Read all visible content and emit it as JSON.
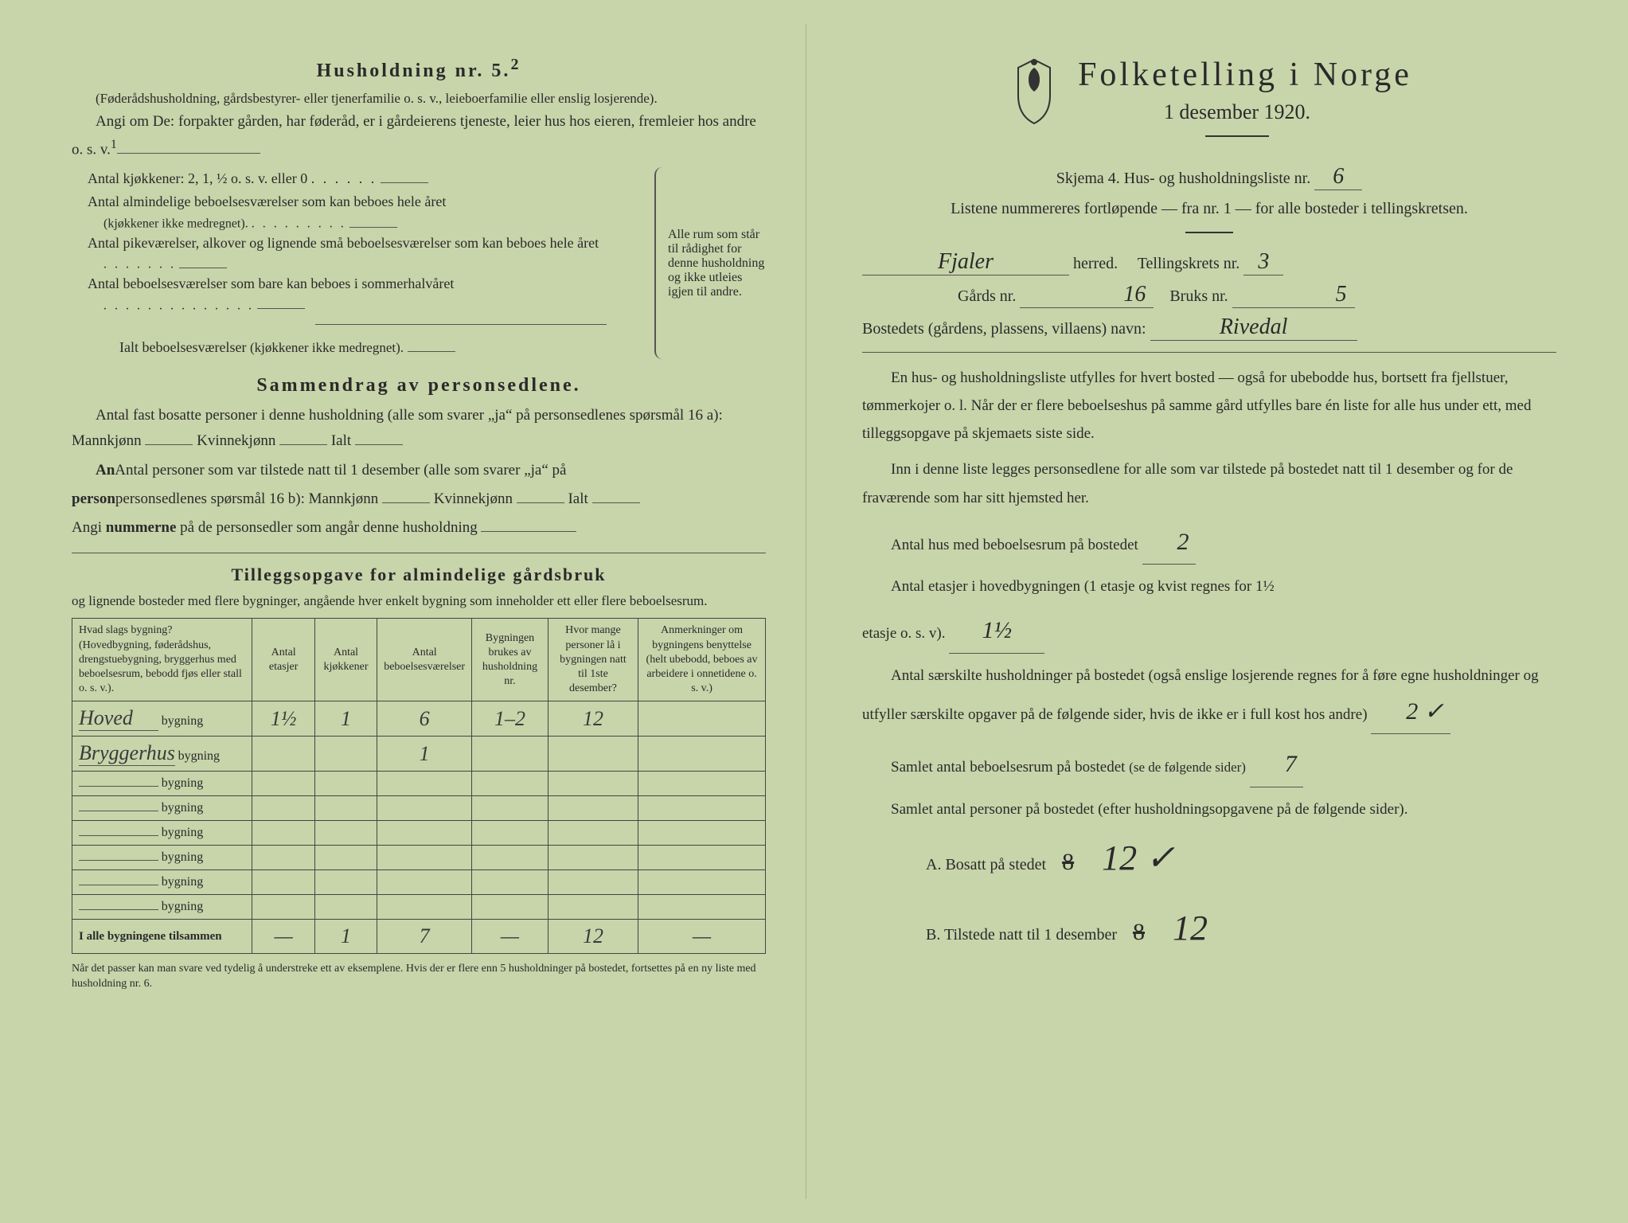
{
  "left": {
    "household_heading": "Husholdning nr. 5.",
    "household_sup": "2",
    "household_note": "(Føderådshusholdning, gårdsbestyrer- eller tjenerfamilie o. s. v., leieboerfamilie eller enslig losjerende).",
    "angi_intro": "Angi om De:   forpakter gården, har føderåd, er i gårdeierens tjeneste, leier hus hos eieren, fremleier hos andre o. s. v.",
    "sup1": "1",
    "kitchens_line": "Antal kjøkkener: 2, 1, ½ o. s. v. eller 0",
    "rooms_all_year": "Antal almindelige beboelsesværelser som kan beboes hele året",
    "rooms_all_year_sub": "(kjøkkener ikke medregnet).",
    "rooms_maid": "Antal pikeværelser, alkover og lignende små beboelsesværelser som kan beboes hele året",
    "rooms_summer": "Antal beboelsesværelser som bare kan beboes i sommerhalvåret",
    "rooms_total": "Ialt beboelsesværelser",
    "rooms_total_sub": "(kjøkkener ikke medregnet).",
    "brace_text": "Alle rum som står til rådighet for denne husholdning og ikke utleies igjen til andre.",
    "summary_heading": "Sammendrag av personsedlene.",
    "summary_p1": "Antal fast bosatte personer i denne husholdning (alle som svarer „ja“ på personsedlenes spørsmål 16 a): Mannkjønn",
    "kvinne": "Kvinnekjønn",
    "ialt": "Ialt",
    "summary_p2a": "Antal personer som var tilstede natt til 1 desember (alle som svarer „ja“ på",
    "summary_p2b": "personsedlenes spørsmål 16 b): Mannkjønn",
    "summary_p3": "Angi nummerne på de personsedler som angår denne husholdning",
    "tillegg_heading": "Tilleggsopgave for almindelige gårdsbruk",
    "tillegg_note": "og lignende bosteder med flere bygninger, angående hver enkelt bygning som inneholder ett eller flere beboelsesrum.",
    "table": {
      "headers": [
        "Hvad slags bygning?\n(Hovedbygning, føderådshus, drengstuebygning, bryggerhus med beboelsesrum, bebodd fjøs eller stall o. s. v.).",
        "Antal etasjer",
        "Antal kjøkkener",
        "Antal beboelsesværelser",
        "Bygningen brukes av husholdning nr.",
        "Hvor mange personer lå i bygningen natt til 1ste desember?",
        "Anmerkninger om bygningens benyttelse (helt ubebodd, beboes av arbeidere i onnetidene o. s. v.)"
      ],
      "row_suffix": "bygning",
      "rows": [
        {
          "label": "Hoved",
          "etasjer": "1½",
          "kjokken": "1",
          "rum": "6",
          "hush": "1–2",
          "pers": "12",
          "anm": ""
        },
        {
          "label": "Bryggerhus",
          "etasjer": "",
          "kjokken": "",
          "rum": "1",
          "hush": "",
          "pers": "",
          "anm": ""
        },
        {
          "label": "",
          "etasjer": "",
          "kjokken": "",
          "rum": "",
          "hush": "",
          "pers": "",
          "anm": ""
        },
        {
          "label": "",
          "etasjer": "",
          "kjokken": "",
          "rum": "",
          "hush": "",
          "pers": "",
          "anm": ""
        },
        {
          "label": "",
          "etasjer": "",
          "kjokken": "",
          "rum": "",
          "hush": "",
          "pers": "",
          "anm": ""
        },
        {
          "label": "",
          "etasjer": "",
          "kjokken": "",
          "rum": "",
          "hush": "",
          "pers": "",
          "anm": ""
        },
        {
          "label": "",
          "etasjer": "",
          "kjokken": "",
          "rum": "",
          "hush": "",
          "pers": "",
          "anm": ""
        },
        {
          "label": "",
          "etasjer": "",
          "kjokken": "",
          "rum": "",
          "hush": "",
          "pers": "",
          "anm": ""
        }
      ],
      "total_label": "I alle bygningene tilsammen",
      "total": {
        "etasjer": "—",
        "kjokken": "1",
        "rum": "7",
        "hush": "—",
        "pers": "12",
        "anm": "—"
      }
    },
    "footnote": "Når det passer kan man svare ved tydelig å understreke ett av eksemplene.\nHvis der er flere enn 5 husholdninger på bostedet, fortsettes på en ny liste med husholdning nr. 6."
  },
  "right": {
    "main_title": "Folketelling i Norge",
    "subtitle": "1 desember 1920.",
    "skjema_line": "Skjema 4.  Hus- og husholdningsliste nr.",
    "skjema_nr": "6",
    "listene_note": "Listene nummereres fortløpende — fra nr. 1 — for alle bosteder i tellingskretsen.",
    "herred_value": "Fjaler",
    "herred_label": "herred.",
    "krets_label": "Tellingskrets nr.",
    "krets_value": "3",
    "gards_label": "Gårds nr.",
    "gards_value": "16",
    "bruks_label": "Bruks nr.",
    "bruks_value": "5",
    "bosted_label": "Bostedets (gårdens, plassens, villaens) navn:",
    "bosted_value": "Rivedal",
    "para1": "En hus- og husholdningsliste utfylles for hvert bosted — også for ubebodde hus, bortsett fra fjellstuer, tømmerkojer o. l.  Når der er flere beboelseshus på samme gård utfylles bare én liste for alle hus under ett, med tilleggsopgave på skjemaets siste side.",
    "para2": "Inn i denne liste legges personsedlene for alle som var tilstede på bostedet natt til 1 desember og for de fraværende som har sitt hjemsted her.",
    "q1_label": "Antal hus med beboelsesrum på bostedet",
    "q1_value": "2",
    "q2_label_a": "Antal etasjer i hovedbygningen (1 etasje og kvist regnes for 1½",
    "q2_label_b": "etasje o. s. v).",
    "q2_value": "1½",
    "q3_text": "Antal særskilte husholdninger på bostedet (også enslige losjerende regnes for å føre egne husholdninger og utfyller særskilte opgaver på de følgende sider, hvis de ikke er i full kost hos andre)",
    "q3_value": "2 ✓",
    "q4_label": "Samlet antal beboelsesrum på bostedet",
    "q4_sub": "(se de følgende sider)",
    "q4_value": "7",
    "q5_label": "Samlet antal personer på bostedet (efter husholdningsopgavene på de følgende sider).",
    "qA_label": "A.  Bosatt på stedet",
    "qA_strike": "8",
    "qA_value": "12 ✓",
    "qB_label": "B.  Tilstede natt til 1 desember",
    "qB_strike": "8",
    "qB_value": "12"
  }
}
